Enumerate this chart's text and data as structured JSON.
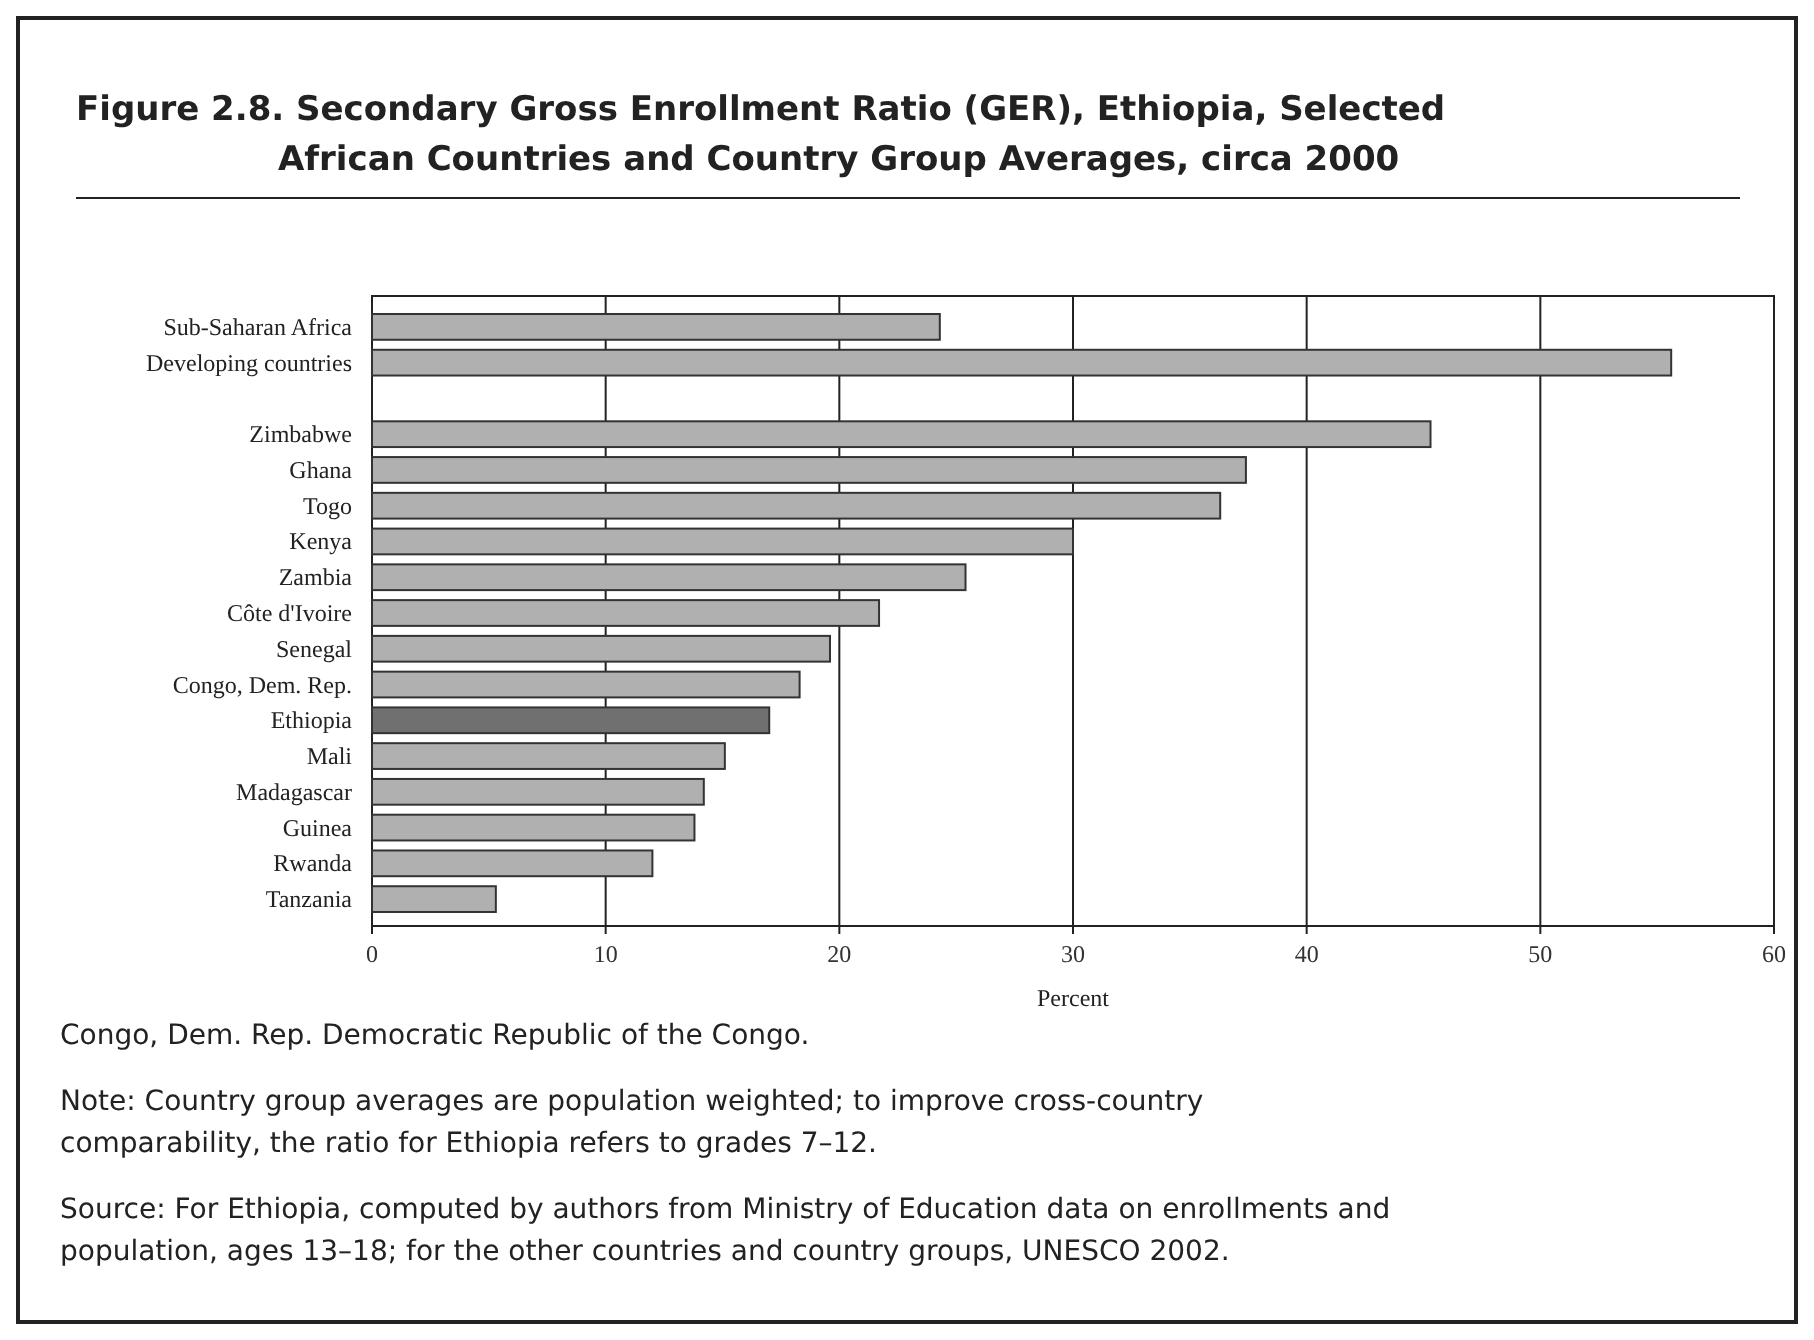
{
  "chart_data": {
    "type": "bar",
    "orientation": "horizontal",
    "title": "Figure 2.8.  Secondary Gross Enrollment Ratio (GER), Ethiopia, Selected African Countries and Country Group Averages, circa 2000",
    "xlabel": "Percent",
    "categories": [
      "Sub-Saharan Africa",
      "Developing countries",
      null,
      "Zimbabwe",
      "Ghana",
      "Togo",
      "Kenya",
      "Zambia",
      "Côte d'Ivoire",
      "Senegal",
      "Congo, Dem. Rep.",
      "Ethiopia",
      "Mali",
      "Madagascar",
      "Guinea",
      "Rwanda",
      "Tanzania"
    ],
    "values": [
      24.3,
      55.6,
      null,
      45.3,
      37.4,
      36.3,
      30.0,
      25.4,
      21.7,
      19.6,
      18.3,
      17.0,
      15.1,
      14.2,
      13.8,
      12.0,
      5.3
    ],
    "colors": [
      "#b0b0b0",
      "#b0b0b0",
      null,
      "#b0b0b0",
      "#b0b0b0",
      "#b0b0b0",
      "#b0b0b0",
      "#b0b0b0",
      "#b0b0b0",
      "#b0b0b0",
      "#b0b0b0",
      "#707070",
      "#b0b0b0",
      "#b0b0b0",
      "#b0b0b0",
      "#b0b0b0",
      "#b0b0b0"
    ],
    "xlim": [
      0,
      60
    ],
    "xticks": [
      0,
      10,
      20,
      30,
      40,
      50,
      60
    ],
    "grid": "x",
    "annotations": [
      "Congo, Dem. Rep. Democratic Republic of the Congo.",
      "Note: Country group averages are population weighted; to improve cross-country comparability, the ratio for Ethiopia refers to grades 7–12.",
      "Source: For Ethiopia, computed by authors from Ministry of Education data on enrollments and population, ages 13–18; for the other countries and country groups, UNESCO 2002."
    ]
  }
}
